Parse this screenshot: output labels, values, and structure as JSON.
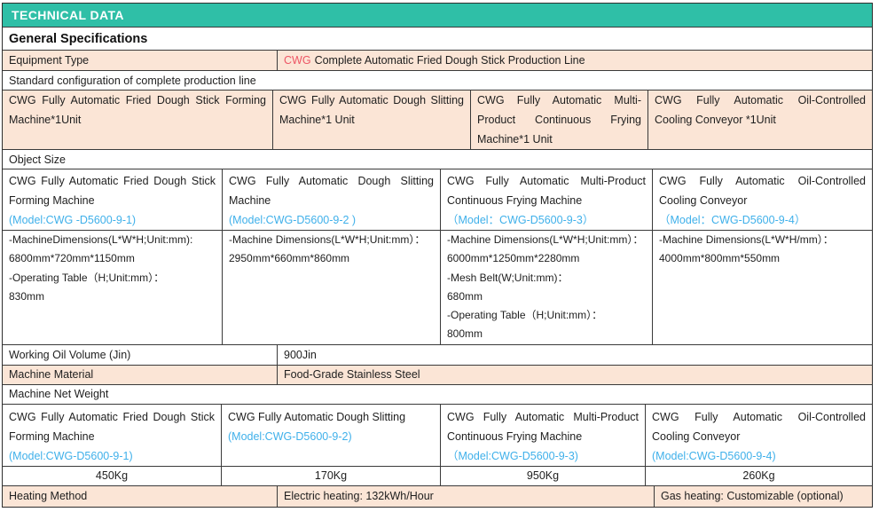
{
  "colors": {
    "header_teal": "#2fbfa7",
    "cell_peach": "#fbe5d6",
    "brand_red": "#ed5565",
    "model_blue": "#3fb0ea",
    "border": "#3a3a3a"
  },
  "header": {
    "title": "TECHNICAL DATA"
  },
  "general": {
    "title": "General Specifications"
  },
  "equipment": {
    "label": "Equipment Type",
    "brand": "CWG",
    "value": "Complete Automatic Fried Dough Stick Production Line"
  },
  "standard_config": {
    "label": "Standard configuration of complete production line",
    "items": [
      "CWG Fully Automatic Fried Dough Stick Forming Machine*1Unit",
      "CWG Fully Automatic Dough Slitting Machine*1 Unit",
      "CWG Fully Automatic Multi-Product Continuous Frying Machine*1 Unit",
      "CWG Fully Automatic Oil-Controlled Cooling Conveyor *1Unit"
    ]
  },
  "object_size": {
    "label": "Object Size",
    "machines": [
      {
        "name": "CWG Fully Automatic Fried Dough Stick Forming Machine",
        "model": "(Model:CWG -D5600-9-1)",
        "dims": [
          "-MachineDimensions(L*W*H;Unit:mm):",
          "6800mm*720mm*1150mm",
          "-Operating Table（H;Unit:mm）：",
          "830mm"
        ]
      },
      {
        "name": "CWG Fully Automatic Dough Slitting Machine",
        "model": "(Model:CWG-D5600-9-2 )",
        "dims": [
          "-Machine Dimensions(L*W*H;Unit:mm）：",
          "2950mm*660mm*860mm"
        ]
      },
      {
        "name": "CWG Fully Automatic Multi-Product Continuous Frying Machine",
        "model": "（Model：CWG-D5600-9-3）",
        "dims": [
          "-Machine Dimensions(L*W*H;Unit:mm）：",
          "6000mm*1250mm*2280mm",
          "-Mesh Belt(W;Unit:mm)：",
          "680mm",
          "-Operating Table（H;Unit:mm）：",
          "800mm"
        ]
      },
      {
        "name": "CWG Fully Automatic Oil-Controlled Cooling Conveyor",
        "model": "（Model：CWG-D5600-9-4）",
        "dims": [
          "-Machine Dimensions(L*W*H/mm）：",
          "4000mm*800mm*550mm"
        ]
      }
    ]
  },
  "oil": {
    "label": "Working Oil Volume (Jin)",
    "value": "900Jin"
  },
  "material": {
    "label": "Machine Material",
    "value": "Food-Grade Stainless Steel"
  },
  "net_weight": {
    "label": "Machine Net Weight",
    "machines": [
      {
        "name": "CWG Fully Automatic Fried Dough Stick Forming Machine",
        "model": "(Model:CWG-D5600-9-1)",
        "weight": "450Kg"
      },
      {
        "name": "CWG Fully Automatic Dough Slitting",
        "model": "(Model:CWG-D5600-9-2)",
        "weight": "170Kg"
      },
      {
        "name": "CWG Fully Automatic Multi-Product Continuous Frying Machine",
        "model": "（Model:CWG-D5600-9-3)",
        "weight": "950Kg"
      },
      {
        "name": "CWG Fully Automatic Oil-Controlled Cooling Conveyor",
        "model": "(Model:CWG-D5600-9-4)",
        "weight": "260Kg"
      }
    ]
  },
  "heating": {
    "label": "Heating Method",
    "electric": "Electric heating: 132kWh/Hour",
    "gas": "Gas heating: Customizable (optional)"
  }
}
